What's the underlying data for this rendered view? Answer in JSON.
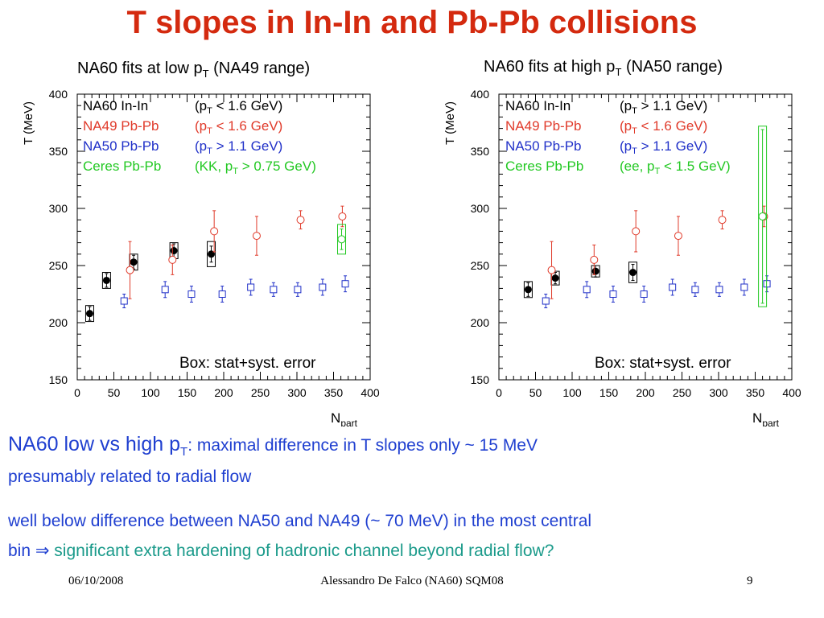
{
  "slide": {
    "title": "T slopes in In-In and Pb-Pb collisions",
    "left_subtitle": {
      "pre": "NA60 fits at low p",
      "sub": "T",
      "post": " (NA49 range)"
    },
    "right_subtitle": {
      "pre": "NA60 fits at high p",
      "sub": "T",
      "post": " (NA50 range)"
    },
    "line1": {
      "main": "NA60 low vs high p",
      "sub": "T",
      "rest": ": maximal difference in T slopes only ~ 15 MeV"
    },
    "line2": "presumably related to radial flow",
    "line3": "well below difference between NA50 and NA49 (~ 70 MeV) in the most central",
    "line4": {
      "pre": "bin ",
      "arrow": "⇒",
      "rest": " significant extra hardening of hadronic channel beyond radial flow?"
    },
    "footer": {
      "date": "06/10/2008",
      "author": "Alessandro De Falco (NA60) SQM08",
      "page": "9"
    }
  },
  "colors": {
    "title": "#d42a0f",
    "na60": "#000000",
    "na49": "#e03a2a",
    "na50": "#2030c8",
    "ceres": "#22c822",
    "text_blue": "#1f3fd0",
    "text_teal": "#1a9a8a"
  },
  "chart_data": [
    {
      "type": "scatter",
      "title": "NA60 fits at low pT (NA49 range)",
      "xlabel": "N_part",
      "ylabel": "T (MeV)",
      "xlim": [
        0,
        400
      ],
      "ylim": [
        150,
        400
      ],
      "xticks": [
        0,
        50,
        100,
        150,
        200,
        250,
        300,
        350,
        400
      ],
      "yticks": [
        150,
        200,
        250,
        300,
        350,
        400
      ],
      "annotation": "Box: stat+syst. error",
      "legend": [
        {
          "name": "NA60 In-In",
          "cond": "(p_T < 1.6 GeV)",
          "color": "#000000"
        },
        {
          "name": "NA49 Pb-Pb",
          "cond": "(p_T < 1.6 GeV)",
          "color": "#e03a2a"
        },
        {
          "name": "NA50 Pb-Pb",
          "cond": "(p_T > 1.1 GeV)",
          "color": "#2030c8"
        },
        {
          "name": "Ceres Pb-Pb",
          "cond": "(KK, p_T > 0.75 GeV)",
          "color": "#22c822"
        }
      ],
      "series": [
        {
          "name": "NA60 In-In",
          "marker": "filled-circle",
          "color": "#000000",
          "points": [
            {
              "x": 17,
              "y": 208,
              "err": 6,
              "box": 7
            },
            {
              "x": 40,
              "y": 237,
              "err": 6,
              "box": 7
            },
            {
              "x": 77,
              "y": 253,
              "err": 6,
              "box": 7
            },
            {
              "x": 132,
              "y": 263,
              "err": 6,
              "box": 7
            },
            {
              "x": 183,
              "y": 260,
              "err": 7,
              "box": 11
            }
          ]
        },
        {
          "name": "NA49 Pb-Pb",
          "marker": "open-circle",
          "color": "#e03a2a",
          "points": [
            {
              "x": 72,
              "y": 246,
              "err": 25
            },
            {
              "x": 130,
              "y": 255,
              "err": 13
            },
            {
              "x": 187,
              "y": 280,
              "err": 18
            },
            {
              "x": 245,
              "y": 276,
              "err": 17
            },
            {
              "x": 305,
              "y": 290,
              "err": 8
            },
            {
              "x": 362,
              "y": 293,
              "err": 9
            }
          ]
        },
        {
          "name": "NA50 Pb-Pb",
          "marker": "open-square",
          "color": "#2030c8",
          "points": [
            {
              "x": 64,
              "y": 219,
              "err": 6
            },
            {
              "x": 120,
              "y": 229,
              "err": 7
            },
            {
              "x": 156,
              "y": 225,
              "err": 7
            },
            {
              "x": 198,
              "y": 225,
              "err": 7
            },
            {
              "x": 237,
              "y": 231,
              "err": 7
            },
            {
              "x": 268,
              "y": 229,
              "err": 6
            },
            {
              "x": 301,
              "y": 229,
              "err": 6
            },
            {
              "x": 335,
              "y": 231,
              "err": 7
            },
            {
              "x": 366,
              "y": 234,
              "err": 7
            }
          ]
        },
        {
          "name": "Ceres Pb-Pb",
          "marker": "open-circle",
          "color": "#22c822",
          "points": [
            {
              "x": 361,
              "y": 273,
              "err": 9,
              "box": 13
            }
          ]
        }
      ]
    },
    {
      "type": "scatter",
      "title": "NA60 fits at high pT (NA50 range)",
      "xlabel": "N_part",
      "ylabel": "T (MeV)",
      "xlim": [
        0,
        400
      ],
      "ylim": [
        150,
        400
      ],
      "xticks": [
        0,
        50,
        100,
        150,
        200,
        250,
        300,
        350,
        400
      ],
      "yticks": [
        150,
        200,
        250,
        300,
        350,
        400
      ],
      "annotation": "Box: stat+syst. error",
      "legend": [
        {
          "name": "NA60 In-In",
          "cond": "(p_T > 1.1 GeV)",
          "color": "#000000"
        },
        {
          "name": "NA49 Pb-Pb",
          "cond": "(p_T < 1.6 GeV)",
          "color": "#e03a2a"
        },
        {
          "name": "NA50 Pb-Pb",
          "cond": "(p_T > 1.1 GeV)",
          "color": "#2030c8"
        },
        {
          "name": "Ceres Pb-Pb",
          "cond": "(ee, p_T < 1.5 GeV)",
          "color": "#22c822"
        }
      ],
      "series": [
        {
          "name": "NA60 In-In",
          "marker": "filled-circle",
          "color": "#000000",
          "points": [
            {
              "x": 40,
              "y": 229,
              "err": 6,
              "box": 7
            },
            {
              "x": 77,
              "y": 239,
              "err": 5,
              "box": 6
            },
            {
              "x": 132,
              "y": 245,
              "err": 5,
              "box": 5
            },
            {
              "x": 183,
              "y": 244,
              "err": 7,
              "box": 9
            }
          ]
        },
        {
          "name": "NA49 Pb-Pb",
          "marker": "open-circle",
          "color": "#e03a2a",
          "points": [
            {
              "x": 72,
              "y": 246,
              "err": 25
            },
            {
              "x": 130,
              "y": 255,
              "err": 13
            },
            {
              "x": 187,
              "y": 280,
              "err": 18
            },
            {
              "x": 245,
              "y": 276,
              "err": 17
            },
            {
              "x": 305,
              "y": 290,
              "err": 8
            },
            {
              "x": 362,
              "y": 293,
              "err": 9
            }
          ]
        },
        {
          "name": "NA50 Pb-Pb",
          "marker": "open-square",
          "color": "#2030c8",
          "points": [
            {
              "x": 64,
              "y": 219,
              "err": 6
            },
            {
              "x": 120,
              "y": 229,
              "err": 7
            },
            {
              "x": 156,
              "y": 225,
              "err": 7
            },
            {
              "x": 198,
              "y": 225,
              "err": 7
            },
            {
              "x": 237,
              "y": 231,
              "err": 7
            },
            {
              "x": 268,
              "y": 229,
              "err": 6
            },
            {
              "x": 301,
              "y": 229,
              "err": 6
            },
            {
              "x": 335,
              "y": 231,
              "err": 7
            },
            {
              "x": 366,
              "y": 234,
              "err": 7
            }
          ]
        },
        {
          "name": "Ceres Pb-Pb",
          "marker": "open-circle",
          "color": "#22c822",
          "points": [
            {
              "x": 360,
              "y": 293,
              "err": 76,
              "box": 79
            }
          ]
        }
      ]
    }
  ]
}
